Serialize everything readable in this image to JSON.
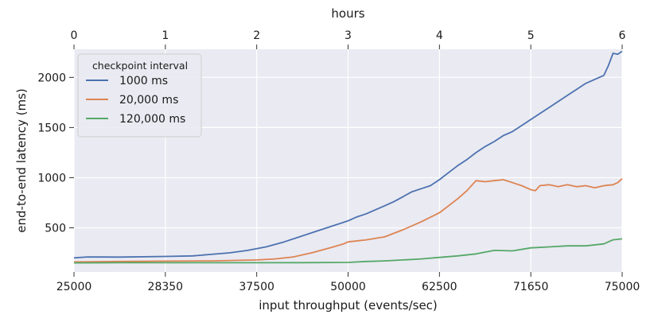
{
  "chart_data": {
    "type": "line",
    "title": "",
    "xlabel": "input throughput (events/sec)",
    "ylabel": "end-to-end latency (ms)",
    "top_xlabel": "hours",
    "x_tick_labels": [
      "25000",
      "28350",
      "37500",
      "50000",
      "62500",
      "71650",
      "75000"
    ],
    "top_x_tick_labels": [
      "0",
      "1",
      "2",
      "3",
      "4",
      "5",
      "6"
    ],
    "y_ticks": [
      500,
      1000,
      1500,
      2000
    ],
    "x_range_hours": [
      0,
      6
    ],
    "ylim": [
      60,
      2280
    ],
    "grid": true,
    "legend": {
      "title": "checkpoint interval",
      "placement": "top-left"
    },
    "series": [
      {
        "name": "1000 ms",
        "color": "#4c72b0",
        "x": [
          0,
          0.15,
          0.5,
          1.0,
          1.3,
          1.5,
          1.7,
          1.9,
          2.1,
          2.3,
          2.5,
          2.7,
          2.9,
          3.0,
          3.1,
          3.2,
          3.3,
          3.4,
          3.5,
          3.6,
          3.7,
          3.8,
          3.9,
          4.0,
          4.1,
          4.2,
          4.3,
          4.4,
          4.5,
          4.6,
          4.7,
          4.8,
          4.9,
          5.0,
          5.1,
          5.2,
          5.3,
          5.4,
          5.5,
          5.6,
          5.7,
          5.8,
          5.85,
          5.9,
          5.95,
          6.0
        ],
        "y": [
          200,
          210,
          208,
          215,
          220,
          235,
          250,
          275,
          310,
          360,
          420,
          480,
          540,
          570,
          610,
          640,
          680,
          720,
          760,
          810,
          860,
          890,
          920,
          980,
          1050,
          1120,
          1180,
          1250,
          1310,
          1360,
          1420,
          1460,
          1520,
          1580,
          1640,
          1700,
          1760,
          1820,
          1880,
          1940,
          1980,
          2020,
          2120,
          2240,
          2230,
          2260
        ]
      },
      {
        "name": "20,000 ms",
        "color": "#dd8452",
        "x": [
          0,
          0.5,
          1.0,
          1.5,
          2.0,
          2.2,
          2.4,
          2.6,
          2.8,
          2.95,
          3.0,
          3.2,
          3.4,
          3.6,
          3.8,
          4.0,
          4.1,
          4.2,
          4.3,
          4.4,
          4.5,
          4.6,
          4.7,
          4.8,
          4.9,
          5.0,
          5.05,
          5.1,
          5.2,
          5.3,
          5.4,
          5.5,
          5.6,
          5.7,
          5.8,
          5.9,
          5.95,
          6.0
        ],
        "y": [
          160,
          165,
          168,
          170,
          180,
          190,
          210,
          250,
          300,
          340,
          360,
          380,
          410,
          480,
          560,
          650,
          720,
          790,
          870,
          970,
          960,
          970,
          980,
          950,
          920,
          880,
          870,
          920,
          930,
          910,
          930,
          910,
          920,
          900,
          920,
          930,
          950,
          990
        ]
      },
      {
        "name": "120,000 ms",
        "color": "#55a868",
        "x": [
          0,
          0.5,
          1.0,
          1.5,
          2.0,
          2.5,
          3.0,
          3.2,
          3.4,
          3.6,
          3.8,
          4.0,
          4.2,
          4.4,
          4.6,
          4.8,
          5.0,
          5.2,
          5.4,
          5.6,
          5.8,
          5.9,
          6.0
        ],
        "y": [
          150,
          152,
          152,
          152,
          152,
          153,
          155,
          165,
          170,
          180,
          190,
          205,
          220,
          240,
          275,
          270,
          300,
          310,
          320,
          320,
          340,
          380,
          390
        ]
      }
    ]
  }
}
